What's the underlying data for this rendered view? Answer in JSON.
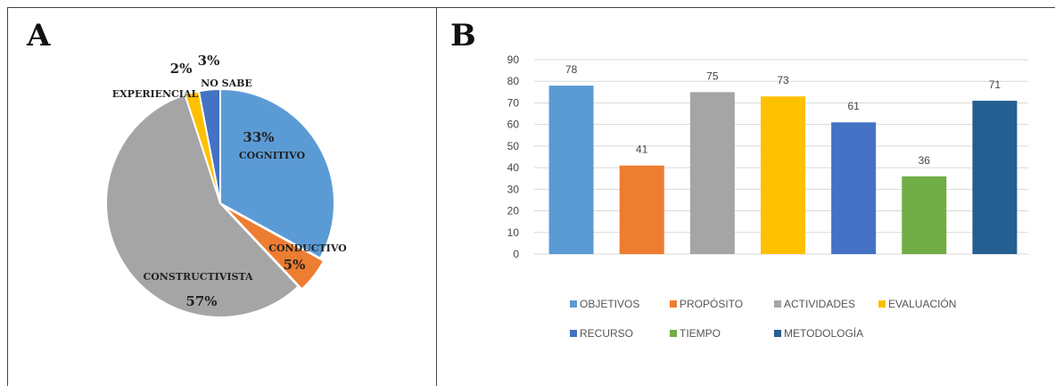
{
  "panels": {
    "a_label": "A",
    "b_label": "B"
  },
  "chart_data": [
    {
      "type": "pie",
      "slices": [
        {
          "name": "COGNITIVO",
          "value": 33,
          "label": "33%",
          "color": "#5B9BD5"
        },
        {
          "name": "CONDUCTIVO",
          "value": 5,
          "label": "5%",
          "color": "#ED7D31"
        },
        {
          "name": "CONSTRUCTIVISTA",
          "value": 57,
          "label": "57%",
          "color": "#A5A5A5"
        },
        {
          "name": "EXPERIENCIAL",
          "value": 2,
          "label": "2%",
          "color": "#FFC000"
        },
        {
          "name": "NO SABE",
          "value": 3,
          "label": "3%",
          "color": "#4472C4"
        }
      ]
    },
    {
      "type": "bar",
      "categories": [
        "OBJETIVOS",
        "PROPÓSITO",
        "ACTIVIDADES",
        "EVALUACIÓN",
        "RECURSO",
        "TIEMPO",
        "METODOLOGÍA"
      ],
      "values": [
        78,
        41,
        75,
        73,
        61,
        36,
        71
      ],
      "colors": [
        "#5B9BD5",
        "#ED7D31",
        "#A5A5A5",
        "#FFC000",
        "#4472C4",
        "#70AD47",
        "#255E91"
      ],
      "ylim": [
        0,
        90
      ],
      "yticks": [
        0,
        10,
        20,
        30,
        40,
        50,
        60,
        70,
        80,
        90
      ],
      "grid": true,
      "legend": "bottom"
    }
  ]
}
